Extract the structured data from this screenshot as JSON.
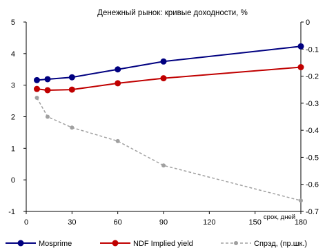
{
  "chart_data": {
    "type": "line",
    "title": "Денежный рынок: кривые доходности, %",
    "annotation": "срок, дней",
    "x": {
      "ticks": [
        "0",
        "30",
        "60",
        "90",
        "120",
        "150",
        "180"
      ],
      "lim": [
        0,
        180
      ]
    },
    "y_left": {
      "ticks": [
        "-1",
        "0",
        "1",
        "2",
        "3",
        "4",
        "5"
      ],
      "lim": [
        -1,
        5
      ]
    },
    "y_right": {
      "ticks": [
        "-0.7",
        "-0.6",
        "-0.5",
        "-0.4",
        "-0.3",
        "-0.2",
        "-0.1",
        "0"
      ],
      "lim": [
        -0.7,
        0
      ]
    },
    "grid": false,
    "legend_position": "bottom",
    "series": [
      {
        "name": "Mosprime",
        "axis": "left",
        "style": "solid",
        "color": "#000080",
        "points": [
          [
            7,
            3.16
          ],
          [
            14,
            3.19
          ],
          [
            30,
            3.25
          ],
          [
            60,
            3.5
          ],
          [
            90,
            3.75
          ],
          [
            180,
            4.23
          ]
        ]
      },
      {
        "name": "NDF Implied yield",
        "axis": "left",
        "style": "solid",
        "color": "#C00000",
        "points": [
          [
            7,
            2.88
          ],
          [
            14,
            2.84
          ],
          [
            30,
            2.86
          ],
          [
            60,
            3.06
          ],
          [
            90,
            3.22
          ],
          [
            180,
            3.57
          ]
        ]
      },
      {
        "name": "Спрэд, (пр.шк.)",
        "axis": "right",
        "style": "dashed",
        "color": "#A0A0A0",
        "points": [
          [
            7,
            -0.28
          ],
          [
            14,
            -0.35
          ],
          [
            30,
            -0.39
          ],
          [
            60,
            -0.44
          ],
          [
            90,
            -0.53
          ],
          [
            180,
            -0.66
          ]
        ]
      }
    ]
  }
}
